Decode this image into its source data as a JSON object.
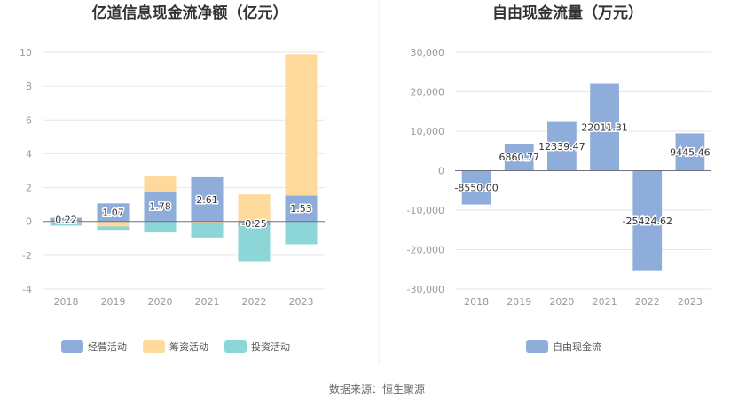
{
  "colors": {
    "operating": "#8eaddb",
    "financing": "#fdd99b",
    "investing": "#8dd6d8",
    "fcf": "#8eaddb",
    "grid": "#e6e6e6",
    "axis": "#6e7079",
    "divider": "#eeeeee"
  },
  "source_text": "数据来源：恒生聚源",
  "chart_data": [
    {
      "type": "bar",
      "stacked": true,
      "title": "亿道信息现金流净额（亿元）",
      "categories": [
        "2018",
        "2019",
        "2020",
        "2021",
        "2022",
        "2023"
      ],
      "ylim": [
        -4,
        10
      ],
      "yticks": [
        "-4",
        "-2",
        "0",
        "2",
        "4",
        "6",
        "8",
        "10"
      ],
      "grid": true,
      "legend_position": "bottom",
      "series": [
        {
          "name": "经营活动",
          "color_key": "operating",
          "values": [
            0.22,
            1.07,
            1.78,
            2.61,
            -0.25,
            1.53
          ],
          "labels": [
            "0.22",
            "1.07",
            "1.78",
            "2.61",
            "-0.25",
            "1.53"
          ]
        },
        {
          "name": "筹资活动",
          "color_key": "financing",
          "values": [
            -0.05,
            -0.3,
            0.92,
            -0.1,
            1.6,
            8.35
          ]
        },
        {
          "name": "投资活动",
          "color_key": "investing",
          "values": [
            -0.2,
            -0.2,
            -0.65,
            -0.85,
            -2.1,
            -1.35
          ]
        }
      ]
    },
    {
      "type": "bar",
      "title": "自由现金流量（万元）",
      "categories": [
        "2018",
        "2019",
        "2020",
        "2021",
        "2022",
        "2023"
      ],
      "ylim": [
        -30000,
        30000
      ],
      "yticks": [
        "-30,000",
        "-20,000",
        "-10,000",
        "0",
        "10,000",
        "20,000",
        "30,000"
      ],
      "grid": true,
      "legend_position": "bottom",
      "series": [
        {
          "name": "自由现金流",
          "color_key": "fcf",
          "values": [
            -8550.0,
            6860.77,
            12339.47,
            22011.31,
            -25424.62,
            9445.46
          ],
          "labels": [
            "-8550.00",
            "6860.77",
            "12339.47",
            "22011.31",
            "-25424.62",
            "9445.46"
          ]
        }
      ]
    }
  ]
}
